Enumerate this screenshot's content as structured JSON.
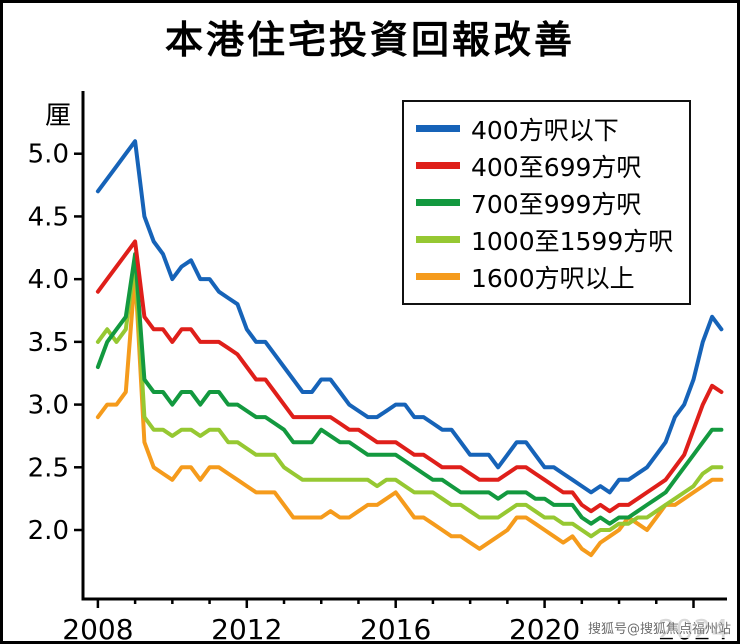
{
  "watermark": "搜狐号@搜狐焦点福州站",
  "chart_data": {
    "type": "line",
    "title": "本港住宅投資回報改善",
    "xlabel": "",
    "ylabel": "厘",
    "xlim": [
      2007.6,
      2024.9
    ],
    "ylim": [
      1.45,
      5.5
    ],
    "xticks": [
      2008,
      2012,
      2016,
      2020,
      2024
    ],
    "yticks": [
      2.0,
      2.5,
      3.0,
      3.5,
      4.0,
      4.5,
      5.0
    ],
    "grid": false,
    "legend_position": "top-right",
    "x": [
      2008,
      2008.25,
      2008.5,
      2008.75,
      2009,
      2009.25,
      2009.5,
      2009.75,
      2010,
      2010.25,
      2010.5,
      2010.75,
      2011,
      2011.25,
      2011.5,
      2011.75,
      2012,
      2012.25,
      2012.5,
      2012.75,
      2013,
      2013.25,
      2013.5,
      2013.75,
      2014,
      2014.25,
      2014.5,
      2014.75,
      2015,
      2015.25,
      2015.5,
      2015.75,
      2016,
      2016.25,
      2016.5,
      2016.75,
      2017,
      2017.25,
      2017.5,
      2017.75,
      2018,
      2018.25,
      2018.5,
      2018.75,
      2019,
      2019.25,
      2019.5,
      2019.75,
      2020,
      2020.25,
      2020.5,
      2020.75,
      2021,
      2021.25,
      2021.5,
      2021.75,
      2022,
      2022.25,
      2022.5,
      2022.75,
      2023,
      2023.25,
      2023.5,
      2023.75,
      2024,
      2024.25,
      2024.5,
      2024.75
    ],
    "series": [
      {
        "key": "under-400",
        "name": "400方呎以下",
        "color": "#1663b8",
        "values": [
          4.7,
          4.8,
          4.9,
          5.0,
          5.1,
          4.5,
          4.3,
          4.2,
          4.0,
          4.1,
          4.15,
          4.0,
          4.0,
          3.9,
          3.85,
          3.8,
          3.6,
          3.5,
          3.5,
          3.4,
          3.3,
          3.2,
          3.1,
          3.1,
          3.2,
          3.2,
          3.1,
          3.0,
          2.95,
          2.9,
          2.9,
          2.95,
          3.0,
          3.0,
          2.9,
          2.9,
          2.85,
          2.8,
          2.8,
          2.7,
          2.6,
          2.6,
          2.6,
          2.5,
          2.6,
          2.7,
          2.7,
          2.6,
          2.5,
          2.5,
          2.45,
          2.4,
          2.35,
          2.3,
          2.35,
          2.3,
          2.4,
          2.4,
          2.45,
          2.5,
          2.6,
          2.7,
          2.9,
          3.0,
          3.2,
          3.5,
          3.7,
          3.6
        ]
      },
      {
        "key": "400-699",
        "name": "400至699方呎",
        "color": "#df1f1a",
        "values": [
          3.9,
          4.0,
          4.1,
          4.2,
          4.3,
          3.7,
          3.6,
          3.6,
          3.5,
          3.6,
          3.6,
          3.5,
          3.5,
          3.5,
          3.45,
          3.4,
          3.3,
          3.2,
          3.2,
          3.1,
          3.0,
          2.9,
          2.9,
          2.9,
          2.9,
          2.9,
          2.85,
          2.8,
          2.8,
          2.75,
          2.7,
          2.7,
          2.7,
          2.65,
          2.6,
          2.6,
          2.55,
          2.5,
          2.5,
          2.5,
          2.45,
          2.4,
          2.4,
          2.4,
          2.45,
          2.5,
          2.5,
          2.45,
          2.4,
          2.35,
          2.3,
          2.3,
          2.2,
          2.15,
          2.2,
          2.15,
          2.2,
          2.2,
          2.25,
          2.3,
          2.35,
          2.4,
          2.5,
          2.6,
          2.8,
          3.0,
          3.15,
          3.1
        ]
      },
      {
        "key": "700-999",
        "name": "700至999方呎",
        "color": "#13993f",
        "values": [
          3.3,
          3.5,
          3.6,
          3.7,
          4.2,
          3.2,
          3.1,
          3.1,
          3.0,
          3.1,
          3.1,
          3.0,
          3.1,
          3.1,
          3.0,
          3.0,
          2.95,
          2.9,
          2.9,
          2.85,
          2.8,
          2.7,
          2.7,
          2.7,
          2.8,
          2.75,
          2.7,
          2.7,
          2.65,
          2.6,
          2.6,
          2.6,
          2.6,
          2.55,
          2.5,
          2.45,
          2.4,
          2.4,
          2.35,
          2.3,
          2.3,
          2.3,
          2.3,
          2.25,
          2.3,
          2.3,
          2.3,
          2.25,
          2.25,
          2.2,
          2.2,
          2.2,
          2.1,
          2.05,
          2.1,
          2.05,
          2.1,
          2.1,
          2.15,
          2.2,
          2.25,
          2.3,
          2.4,
          2.5,
          2.6,
          2.7,
          2.8,
          2.8
        ]
      },
      {
        "key": "1000-1599",
        "name": "1000至1599方呎",
        "color": "#96c832",
        "values": [
          3.5,
          3.6,
          3.5,
          3.6,
          4.15,
          2.9,
          2.8,
          2.8,
          2.75,
          2.8,
          2.8,
          2.75,
          2.8,
          2.8,
          2.7,
          2.7,
          2.65,
          2.6,
          2.6,
          2.6,
          2.5,
          2.45,
          2.4,
          2.4,
          2.4,
          2.4,
          2.4,
          2.4,
          2.4,
          2.4,
          2.35,
          2.4,
          2.4,
          2.35,
          2.3,
          2.3,
          2.3,
          2.25,
          2.2,
          2.2,
          2.15,
          2.1,
          2.1,
          2.1,
          2.15,
          2.2,
          2.2,
          2.15,
          2.1,
          2.1,
          2.05,
          2.05,
          2.0,
          1.95,
          2.0,
          2.0,
          2.05,
          2.05,
          2.1,
          2.1,
          2.15,
          2.2,
          2.25,
          2.3,
          2.35,
          2.45,
          2.5,
          2.5
        ]
      },
      {
        "key": "over-1600",
        "name": "1600方呎以上",
        "color": "#f59b1c",
        "values": [
          2.9,
          3.0,
          3.0,
          3.1,
          4.05,
          2.7,
          2.5,
          2.45,
          2.4,
          2.5,
          2.5,
          2.4,
          2.5,
          2.5,
          2.45,
          2.4,
          2.35,
          2.3,
          2.3,
          2.3,
          2.2,
          2.1,
          2.1,
          2.1,
          2.1,
          2.15,
          2.1,
          2.1,
          2.15,
          2.2,
          2.2,
          2.25,
          2.3,
          2.2,
          2.1,
          2.1,
          2.05,
          2.0,
          1.95,
          1.95,
          1.9,
          1.85,
          1.9,
          1.95,
          2.0,
          2.1,
          2.1,
          2.05,
          2.0,
          1.95,
          1.9,
          1.95,
          1.85,
          1.8,
          1.9,
          1.95,
          2.0,
          2.1,
          2.05,
          2.0,
          2.1,
          2.2,
          2.2,
          2.25,
          2.3,
          2.35,
          2.4,
          2.4
        ]
      }
    ]
  }
}
